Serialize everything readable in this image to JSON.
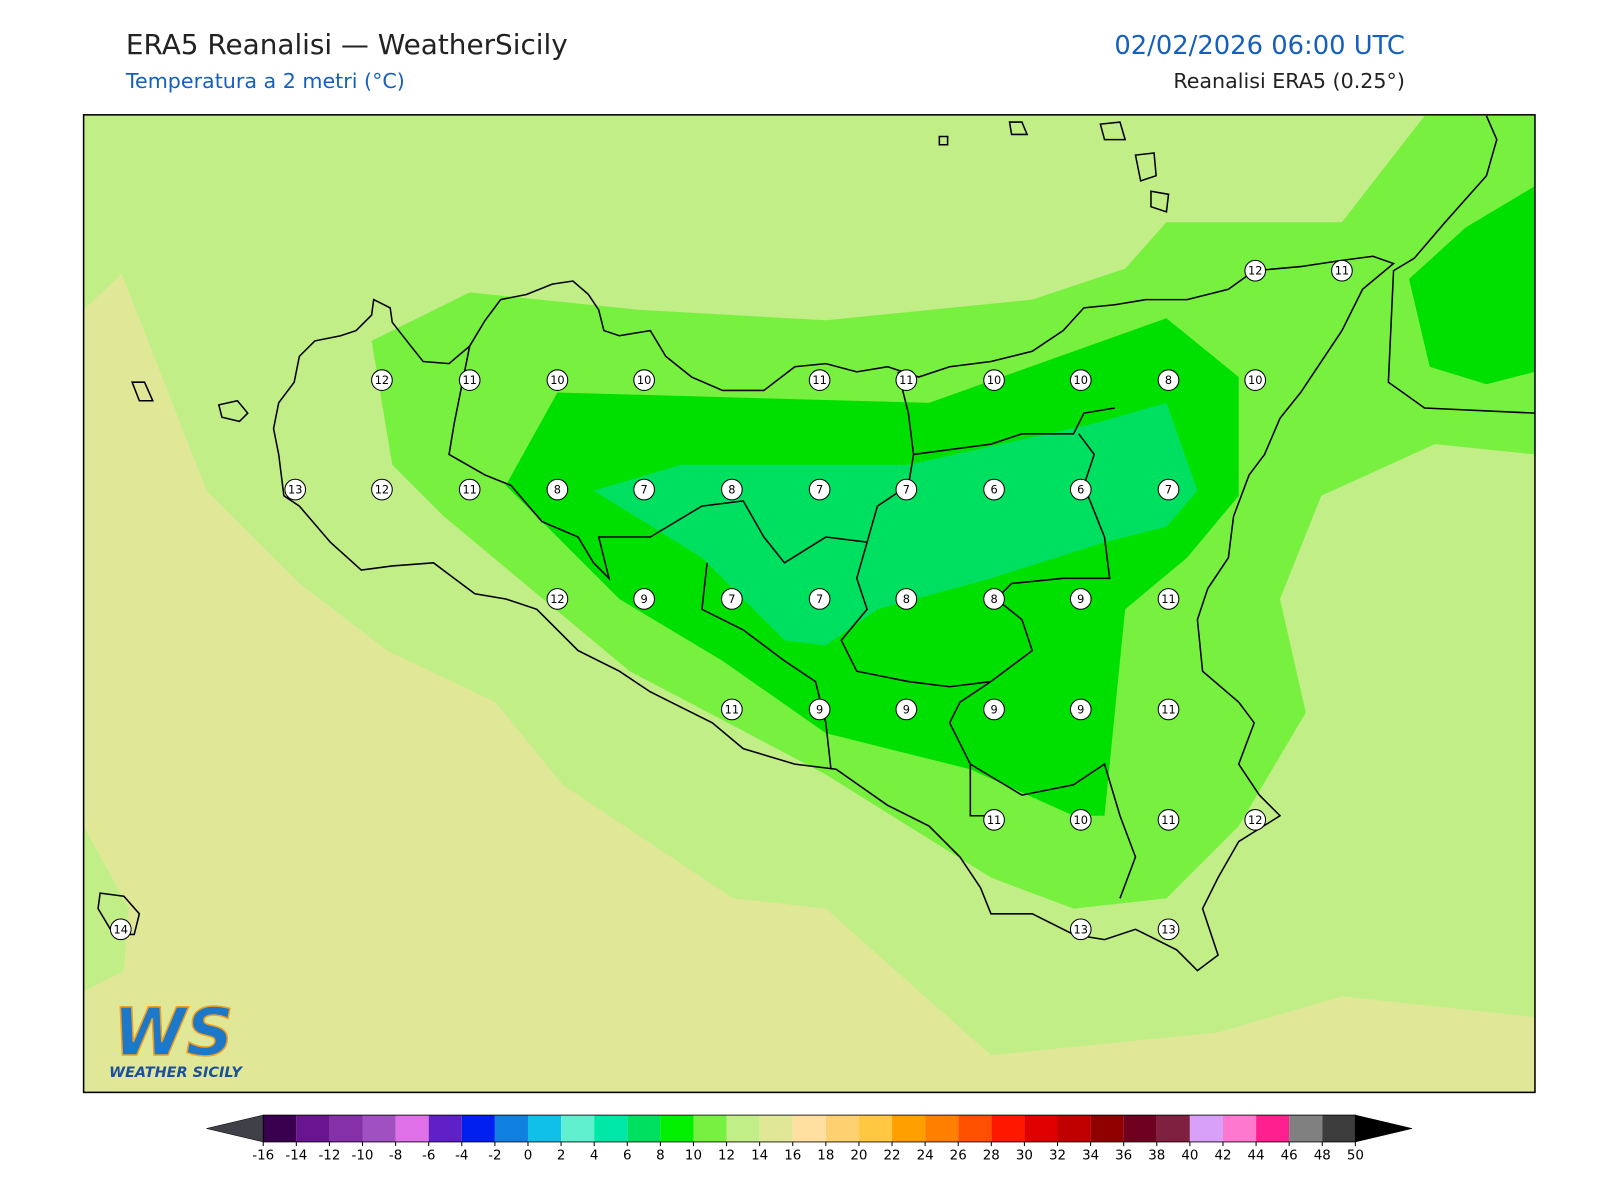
{
  "header": {
    "title": "ERA5 Reanalisi — WeatherSicily",
    "subtitle": "Temperatura a 2 metri (°C)",
    "datetime": "02/02/2026 06:00 UTC",
    "source": "Reanalisi ERA5 (0.25°)"
  },
  "map": {
    "stations": [
      12,
      11,
      12,
      11,
      10,
      10,
      11,
      11,
      10,
      10,
      8,
      10,
      13,
      12,
      11,
      8,
      7,
      8,
      7,
      7,
      6,
      6,
      7,
      12,
      9,
      7,
      7,
      8,
      8,
      9,
      11,
      11,
      9,
      9,
      9,
      9,
      11,
      11,
      10,
      11,
      12,
      14,
      13,
      13
    ]
  },
  "colorbar": {
    "ticks": [
      -16,
      -14,
      -12,
      -10,
      -8,
      -6,
      -4,
      -2,
      0,
      2,
      4,
      6,
      8,
      10,
      12,
      14,
      16,
      18,
      20,
      22,
      24,
      26,
      28,
      30,
      32,
      34,
      36,
      38,
      40,
      42,
      44,
      46,
      48,
      50
    ],
    "colors": [
      "#3a0050",
      "#6a1590",
      "#8530a8",
      "#a050c0",
      "#e070e8",
      "#6020c8",
      "#0020f0",
      "#1080e0",
      "#10c0e8",
      "#60f0d0",
      "#00e8a8",
      "#00e060",
      "#00f000",
      "#78f040",
      "#c2ee88",
      "#e0e898",
      "#ffe0a0",
      "#ffd070",
      "#ffc840",
      "#ffa000",
      "#ff8000",
      "#ff5000",
      "#ff1800",
      "#e00000",
      "#c00000",
      "#900000",
      "#700020",
      "#802040",
      "#d8a0f8",
      "#ff78d0",
      "#ff2090",
      "#808080",
      "#3c3c3c"
    ],
    "extend_colors": [
      "#404048",
      "#000000"
    ]
  },
  "logo": {
    "mark": "WS",
    "name": "WEATHER SICILY"
  }
}
